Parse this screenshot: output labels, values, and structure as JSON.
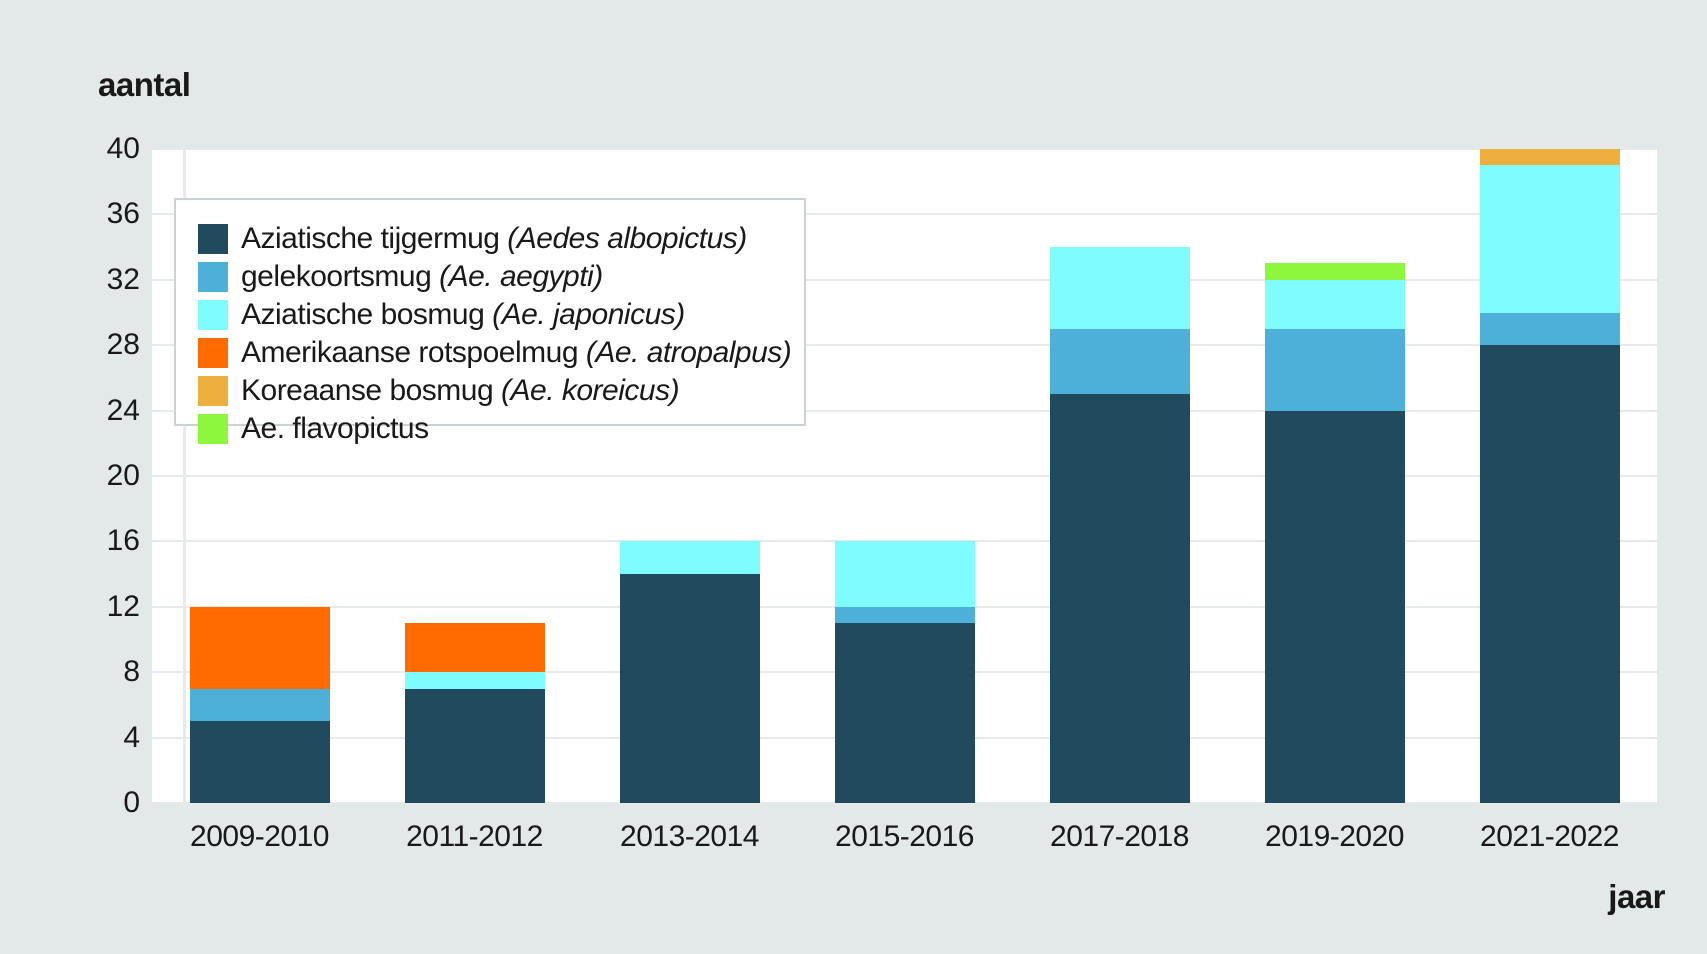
{
  "page": {
    "background_color": "#e3e8e8",
    "plot_background_color": "#ffffff",
    "gridline_color": "#e6eaea",
    "text_color": "#191919"
  },
  "chart_data": {
    "type": "bar",
    "stacked": true,
    "y_axis_title": "aantal",
    "x_axis_title": "jaar",
    "categories": [
      "2009-2010",
      "2011-2012",
      "2013-2014",
      "2015-2016",
      "2017-2018",
      "2019-2020",
      "2021-2022"
    ],
    "series": [
      {
        "name": "Aziatische tijgermug",
        "latin": "(Aedes albopictus)",
        "color": "#204a5e",
        "values": [
          5,
          7,
          14,
          11,
          25,
          24,
          28
        ]
      },
      {
        "name": "gelekoortsmug",
        "latin": "(Ae. aegypti)",
        "color": "#4db0d8",
        "values": [
          2,
          0,
          0,
          1,
          4,
          5,
          2
        ]
      },
      {
        "name": "Aziatische bosmug",
        "latin": "(Ae. japonicus)",
        "color": "#7efcfe",
        "values": [
          0,
          1,
          2,
          4,
          5,
          3,
          9
        ]
      },
      {
        "name": "Amerikaanse rotspoelmug",
        "latin": "(Ae. atropalpus)",
        "color": "#ff6b01",
        "values": [
          5,
          3,
          0,
          0,
          0,
          0,
          0
        ]
      },
      {
        "name": "Koreaanse bosmug",
        "latin": "(Ae. koreicus)",
        "color": "#eeb03c",
        "values": [
          0,
          0,
          0,
          0,
          0,
          0,
          1
        ]
      },
      {
        "name": "Ae. flavopictus",
        "latin": "",
        "color": "#8df73d",
        "values": [
          0,
          0,
          0,
          0,
          0,
          1,
          0
        ]
      }
    ],
    "ylim": [
      0,
      40
    ],
    "yticks": [
      0,
      4,
      8,
      12,
      16,
      20,
      24,
      28,
      32,
      36,
      40
    ],
    "grid": "horizontal",
    "legend_position": "top-left-inside"
  }
}
